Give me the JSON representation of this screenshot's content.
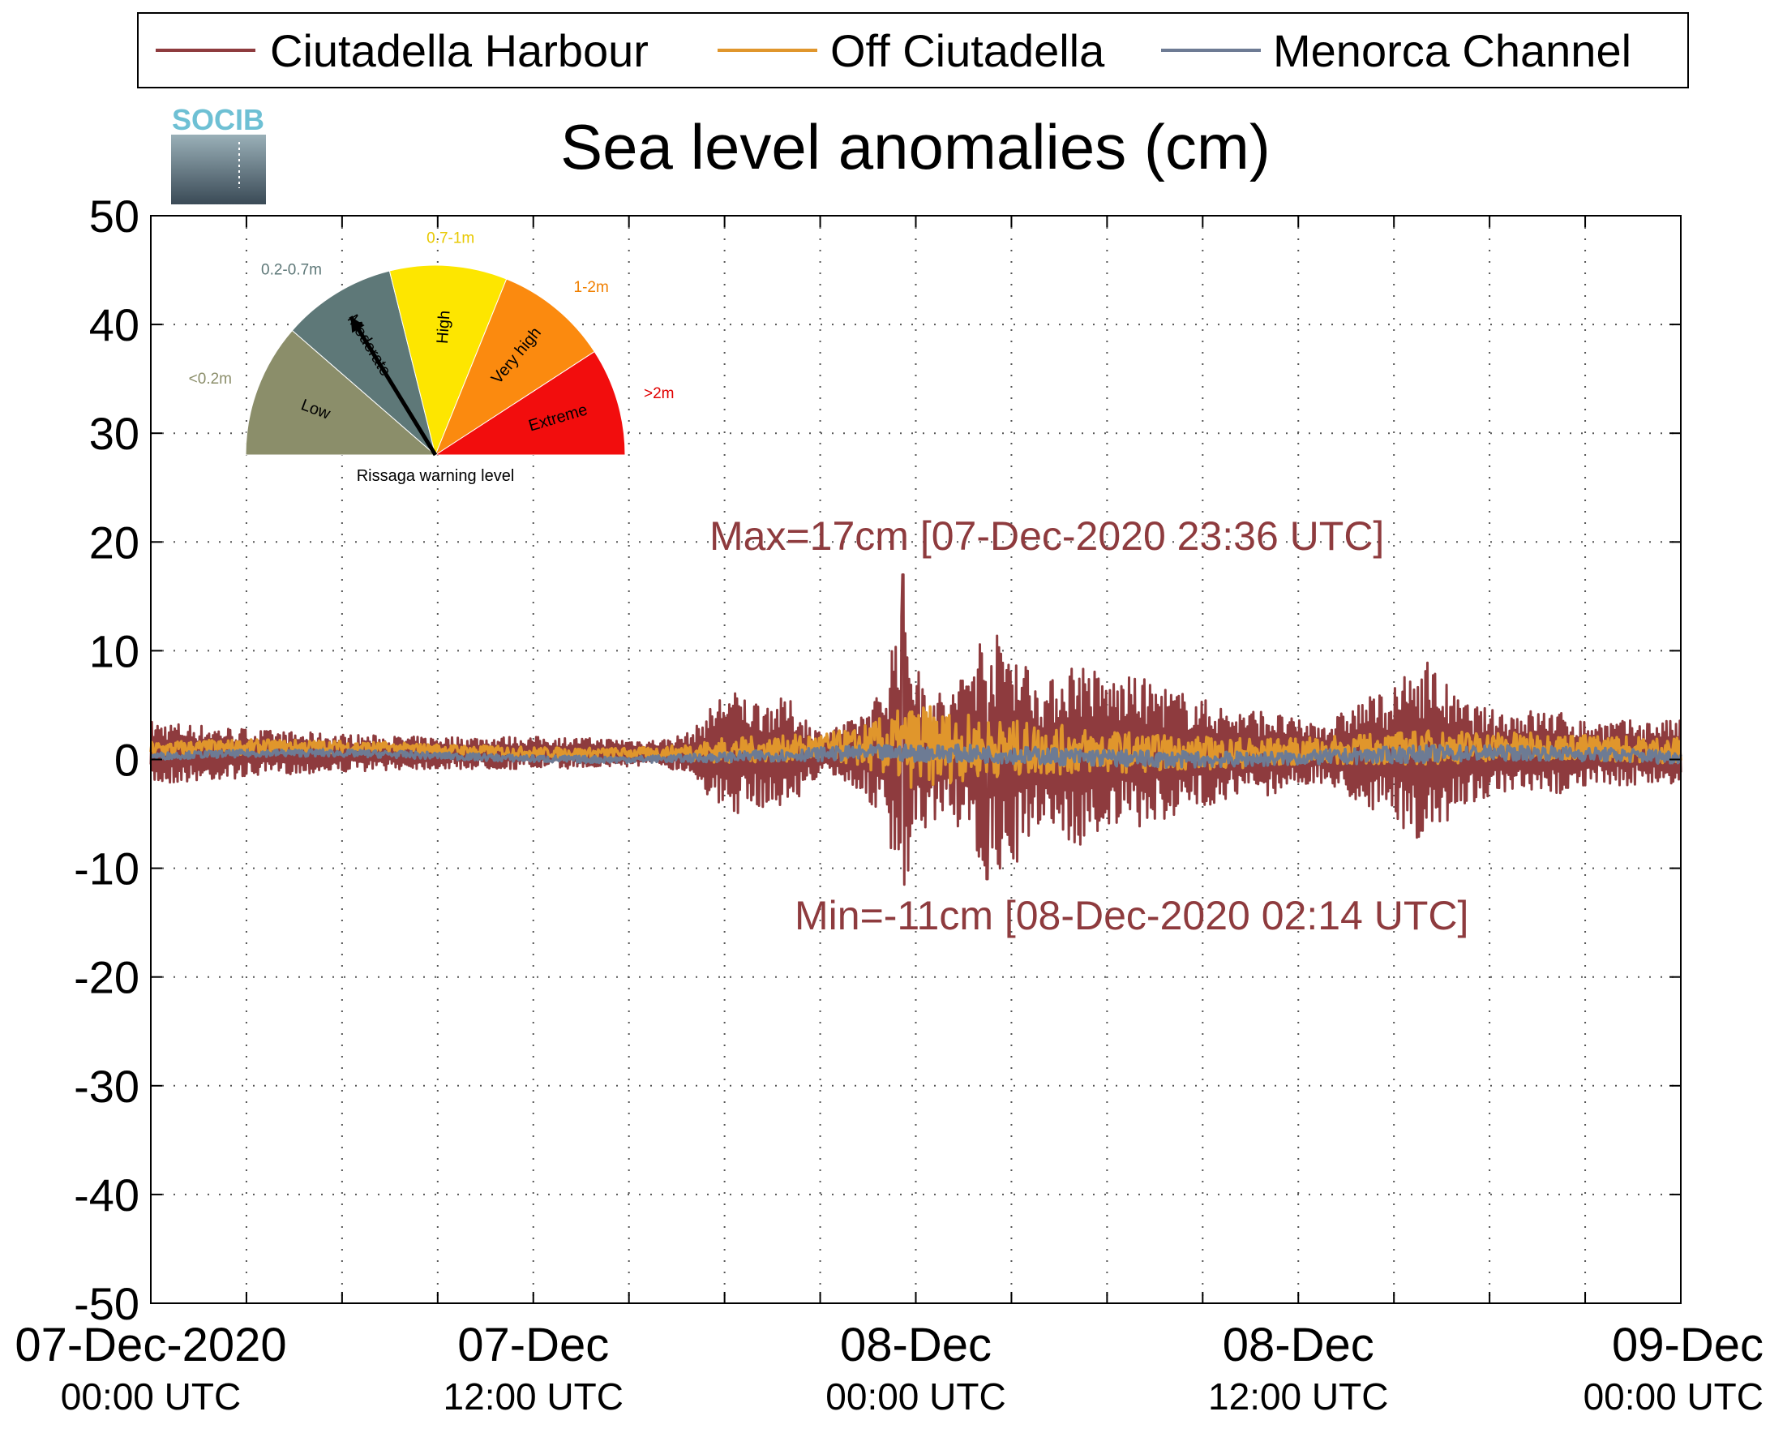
{
  "legend": {
    "placement": "top",
    "entries": [
      {
        "name": "Ciutadella Harbour",
        "color": "#8e3b3e"
      },
      {
        "name": "Off Ciutadella",
        "color": "#e0962c"
      },
      {
        "name": "Menorca Channel",
        "color": "#6d7b94"
      }
    ]
  },
  "logo": {
    "text": "SOCIB"
  },
  "gauge": {
    "caption": "Rissaga warning level",
    "sectors": [
      {
        "label": "Low",
        "range": "<0.2m",
        "color": "#8b8e6a",
        "range_color": "#8b8e6a"
      },
      {
        "label": "Moderate",
        "range": "0.2-0.7m",
        "color": "#5e7878",
        "range_color": "#5e7878"
      },
      {
        "label": "High",
        "range": "0.7-1m",
        "color": "#fde600",
        "range_color": "#e8c800"
      },
      {
        "label": "Very high",
        "range": "1-2m",
        "color": "#fb8a0f",
        "range_color": "#f07f00"
      },
      {
        "label": "Extreme",
        "range": ">2m",
        "color": "#f20d0d",
        "range_color": "#e00000"
      }
    ],
    "current_level": "Moderate"
  },
  "chart_data": {
    "type": "line",
    "title": "Sea level anomalies (cm)",
    "xlabel": "",
    "ylabel": "",
    "ylim": [
      -50,
      50
    ],
    "yticks": [
      50,
      40,
      30,
      20,
      10,
      0,
      -10,
      -20,
      -30,
      -40,
      -50
    ],
    "xlim_hours": [
      0,
      48
    ],
    "x_grid_hours": [
      3,
      6,
      9,
      12,
      15,
      18,
      21,
      24,
      27,
      30,
      33,
      36,
      39,
      42,
      45
    ],
    "xtick_labels": [
      {
        "hour": 0,
        "date": "07-Dec-2020",
        "time": "00:00 UTC"
      },
      {
        "hour": 12,
        "date": "07-Dec",
        "time": "12:00 UTC"
      },
      {
        "hour": 24,
        "date": "08-Dec",
        "time": "00:00 UTC"
      },
      {
        "hour": 36,
        "date": "08-Dec",
        "time": "12:00 UTC"
      },
      {
        "hour": 48,
        "date": "09-Dec",
        "time": "00:00 UTC"
      }
    ],
    "grid": true,
    "series": [
      {
        "name": "Ciutadella Harbour",
        "color": "#8e3b3e",
        "envelope": [
          [
            0,
            3
          ],
          [
            4,
            2
          ],
          [
            8,
            1.5
          ],
          [
            12,
            1.5
          ],
          [
            16,
            1.2
          ],
          [
            17,
            2
          ],
          [
            18,
            6
          ],
          [
            19,
            5
          ],
          [
            20,
            5
          ],
          [
            21,
            2
          ],
          [
            22,
            3
          ],
          [
            23,
            6
          ],
          [
            23.6,
            17
          ],
          [
            24,
            8
          ],
          [
            25,
            5
          ],
          [
            26,
            11
          ],
          [
            27,
            11
          ],
          [
            28,
            6
          ],
          [
            29,
            9
          ],
          [
            30,
            7
          ],
          [
            31,
            7
          ],
          [
            32,
            6
          ],
          [
            33,
            5
          ],
          [
            34,
            4
          ],
          [
            35,
            4
          ],
          [
            36,
            3
          ],
          [
            37,
            3
          ],
          [
            38,
            5
          ],
          [
            39,
            6
          ],
          [
            40,
            9
          ],
          [
            41,
            5
          ],
          [
            42,
            4
          ],
          [
            43,
            4
          ],
          [
            44,
            4
          ],
          [
            45,
            3
          ],
          [
            46,
            3
          ],
          [
            47,
            3
          ],
          [
            48,
            3
          ]
        ],
        "max": {
          "value": 17,
          "label": "Max=17cm [07-Dec-2020 23:36 UTC]"
        },
        "min": {
          "value": -11,
          "label": "Min=-11cm [08-Dec-2020 02:14 UTC]"
        }
      },
      {
        "name": "Off Ciutadella",
        "color": "#e0962c",
        "envelope": [
          [
            0,
            1
          ],
          [
            8,
            0.6
          ],
          [
            16,
            0.6
          ],
          [
            18,
            1.5
          ],
          [
            20,
            1.5
          ],
          [
            22,
            2
          ],
          [
            24,
            5
          ],
          [
            26,
            3.5
          ],
          [
            28,
            3
          ],
          [
            30,
            2.5
          ],
          [
            32,
            2
          ],
          [
            34,
            1.8
          ],
          [
            36,
            1.5
          ],
          [
            40,
            2
          ],
          [
            44,
            1.5
          ],
          [
            48,
            1.5
          ]
        ]
      },
      {
        "name": "Menorca Channel",
        "color": "#6d7b94",
        "envelope": [
          [
            0,
            0.4
          ],
          [
            16,
            0.4
          ],
          [
            20,
            0.7
          ],
          [
            24,
            1
          ],
          [
            30,
            1
          ],
          [
            36,
            0.8
          ],
          [
            40,
            1
          ],
          [
            44,
            0.8
          ],
          [
            48,
            0.8
          ]
        ]
      }
    ]
  }
}
